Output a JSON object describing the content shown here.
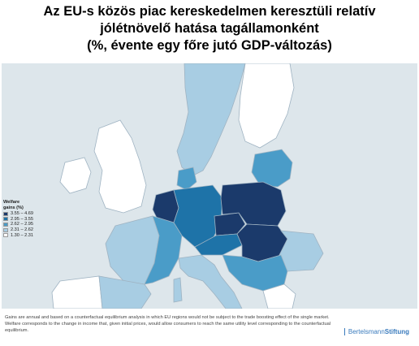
{
  "title": {
    "line1": "Az EU-s közös piac kereskedelmen keresztüli relatív",
    "line2": "jólétnövelő hatása tagállamonként",
    "line3": "(%, évente egy főre jutó GDP-változás)"
  },
  "legend": {
    "title_line1": "Welfare",
    "title_line2": "gains (%)",
    "classes": [
      {
        "label": "3.55 – 4.69",
        "color": "#1b3a6b"
      },
      {
        "label": "2.95 – 3.55",
        "color": "#1e73a8"
      },
      {
        "label": "2.62 – 2.95",
        "color": "#4a9cc8"
      },
      {
        "label": "2.31 – 2.62",
        "color": "#a8cde3"
      },
      {
        "label": "1.30 – 2.31",
        "color": "#ffffff"
      }
    ]
  },
  "map_regions": [
    {
      "id": "ireland",
      "class_index": 4
    },
    {
      "id": "united-kingdom",
      "class_index": 4
    },
    {
      "id": "iberia-west",
      "class_index": 4
    },
    {
      "id": "iberia-east",
      "class_index": 3
    },
    {
      "id": "france-west",
      "class_index": 3
    },
    {
      "id": "france-east",
      "class_index": 2
    },
    {
      "id": "benelux",
      "class_index": 0
    },
    {
      "id": "germany",
      "class_index": 1
    },
    {
      "id": "czechia",
      "class_index": 0
    },
    {
      "id": "hungary-slovakia",
      "class_index": 0
    },
    {
      "id": "poland",
      "class_index": 0
    },
    {
      "id": "austria",
      "class_index": 1
    },
    {
      "id": "italy",
      "class_index": 3
    },
    {
      "id": "balkans",
      "class_index": 2
    },
    {
      "id": "romania",
      "class_index": 3
    },
    {
      "id": "greece",
      "class_index": 4
    },
    {
      "id": "scandinavia",
      "class_index": 3
    },
    {
      "id": "finland",
      "class_index": 4
    },
    {
      "id": "baltics",
      "class_index": 2
    },
    {
      "id": "denmark",
      "class_index": 2
    }
  ],
  "footer": {
    "note": "Gains are annual and based on a counterfactual equilibrium analysis in which EU regions would not be subject to the trade boosting effect of the single market. Welfare corresponds to the change in income that, given initial prices, would allow consumers to reach the same utility level corresponding to the counterfactual equilibrium."
  },
  "brand": {
    "part1": "Bertelsmann",
    "part2": "Stiftung"
  }
}
